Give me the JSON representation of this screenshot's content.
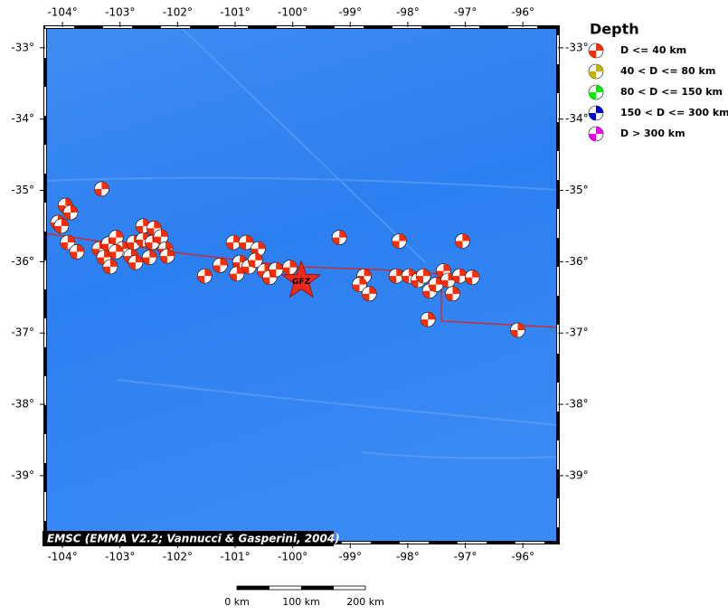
{
  "map": {
    "lonlim": [
      -104.3,
      -95.39
    ],
    "latlim": [
      -32.71,
      -39.94
    ],
    "lonticks": [
      {
        "value": -104,
        "label": "-104°"
      },
      {
        "value": -103,
        "label": "-103°"
      },
      {
        "value": -102,
        "label": "-102°"
      },
      {
        "value": -101,
        "label": "-101°"
      },
      {
        "value": -100,
        "label": "-100°"
      },
      {
        "value": -99,
        "label": "-99°"
      },
      {
        "value": -98,
        "label": "-98°"
      },
      {
        "value": -97,
        "label": "-97°"
      },
      {
        "value": -96,
        "label": "-96°"
      }
    ],
    "latticks": [
      {
        "value": -33,
        "label": "-33°"
      },
      {
        "value": -34,
        "label": "-34°"
      },
      {
        "value": -35,
        "label": "-35°"
      },
      {
        "value": -36,
        "label": "-36°"
      },
      {
        "value": -37,
        "label": "-37°"
      },
      {
        "value": -38,
        "label": "-38°"
      },
      {
        "value": -39,
        "label": "-39°"
      }
    ],
    "events": [
      {
        "lon": -103.32,
        "lat": -34.98
      },
      {
        "lon": -103.95,
        "lat": -35.21
      },
      {
        "lon": -103.86,
        "lat": -35.31
      },
      {
        "lon": -104.08,
        "lat": -35.45
      },
      {
        "lon": -104.02,
        "lat": -35.5
      },
      {
        "lon": -103.91,
        "lat": -35.73
      },
      {
        "lon": -103.75,
        "lat": -35.86
      },
      {
        "lon": -103.36,
        "lat": -35.82
      },
      {
        "lon": -103.2,
        "lat": -35.75
      },
      {
        "lon": -103.07,
        "lat": -35.66
      },
      {
        "lon": -103.28,
        "lat": -35.94
      },
      {
        "lon": -103.17,
        "lat": -36.07
      },
      {
        "lon": -102.96,
        "lat": -35.82
      },
      {
        "lon": -102.81,
        "lat": -35.92
      },
      {
        "lon": -102.76,
        "lat": -35.73
      },
      {
        "lon": -102.6,
        "lat": -35.69
      },
      {
        "lon": -102.6,
        "lat": -35.5
      },
      {
        "lon": -102.41,
        "lat": -35.53
      },
      {
        "lon": -102.44,
        "lat": -35.73
      },
      {
        "lon": -102.49,
        "lat": -35.94
      },
      {
        "lon": -102.29,
        "lat": -35.65
      },
      {
        "lon": -102.21,
        "lat": -35.82
      },
      {
        "lon": -102.18,
        "lat": -35.92
      },
      {
        "lon": -102.73,
        "lat": -36.01
      },
      {
        "lon": -103.07,
        "lat": -35.86
      },
      {
        "lon": -101.53,
        "lat": -36.2
      },
      {
        "lon": -101.26,
        "lat": -36.05
      },
      {
        "lon": -101.03,
        "lat": -35.73
      },
      {
        "lon": -100.81,
        "lat": -35.73
      },
      {
        "lon": -100.92,
        "lat": -36.01
      },
      {
        "lon": -100.97,
        "lat": -36.17
      },
      {
        "lon": -100.76,
        "lat": -36.07
      },
      {
        "lon": -100.6,
        "lat": -35.82
      },
      {
        "lon": -100.65,
        "lat": -35.98
      },
      {
        "lon": -100.49,
        "lat": -36.13
      },
      {
        "lon": -100.4,
        "lat": -36.22
      },
      {
        "lon": -100.29,
        "lat": -36.11
      },
      {
        "lon": -100.05,
        "lat": -36.08
      },
      {
        "lon": -99.19,
        "lat": -35.66
      },
      {
        "lon": -98.15,
        "lat": -35.71
      },
      {
        "lon": -97.05,
        "lat": -35.71
      },
      {
        "lon": -98.76,
        "lat": -36.2
      },
      {
        "lon": -98.84,
        "lat": -36.32
      },
      {
        "lon": -98.67,
        "lat": -36.45
      },
      {
        "lon": -98.2,
        "lat": -36.2
      },
      {
        "lon": -97.98,
        "lat": -36.2
      },
      {
        "lon": -97.82,
        "lat": -36.26
      },
      {
        "lon": -97.73,
        "lat": -36.2
      },
      {
        "lon": -97.62,
        "lat": -36.41
      },
      {
        "lon": -97.51,
        "lat": -36.32
      },
      {
        "lon": -97.38,
        "lat": -36.13
      },
      {
        "lon": -97.3,
        "lat": -36.26
      },
      {
        "lon": -97.22,
        "lat": -36.45
      },
      {
        "lon": -97.1,
        "lat": -36.2
      },
      {
        "lon": -96.88,
        "lat": -36.22
      },
      {
        "lon": -97.65,
        "lat": -36.81
      },
      {
        "lon": -96.09,
        "lat": -36.96
      }
    ],
    "station": {
      "lon": -99.85,
      "lat": -36.27,
      "label": "GFZ"
    },
    "legend": {
      "title": "Depth",
      "items": [
        {
          "label": "D <= 40 km",
          "color": "#ff2a00"
        },
        {
          "label": "40 < D <= 80 km",
          "color": "#c8b400"
        },
        {
          "label": "80 < D <= 150 km",
          "color": "#00ee00"
        },
        {
          "label": "150 < D <= 300 km",
          "color": "#0000dd"
        },
        {
          "label": "D > 300 km",
          "color": "#ee00ee"
        }
      ]
    },
    "credit": "EMSC (EMMA V2.2; Vannucci & Gasperini, 2004)",
    "scale_bar": [
      "0 km",
      "100 km",
      "200 km"
    ]
  }
}
